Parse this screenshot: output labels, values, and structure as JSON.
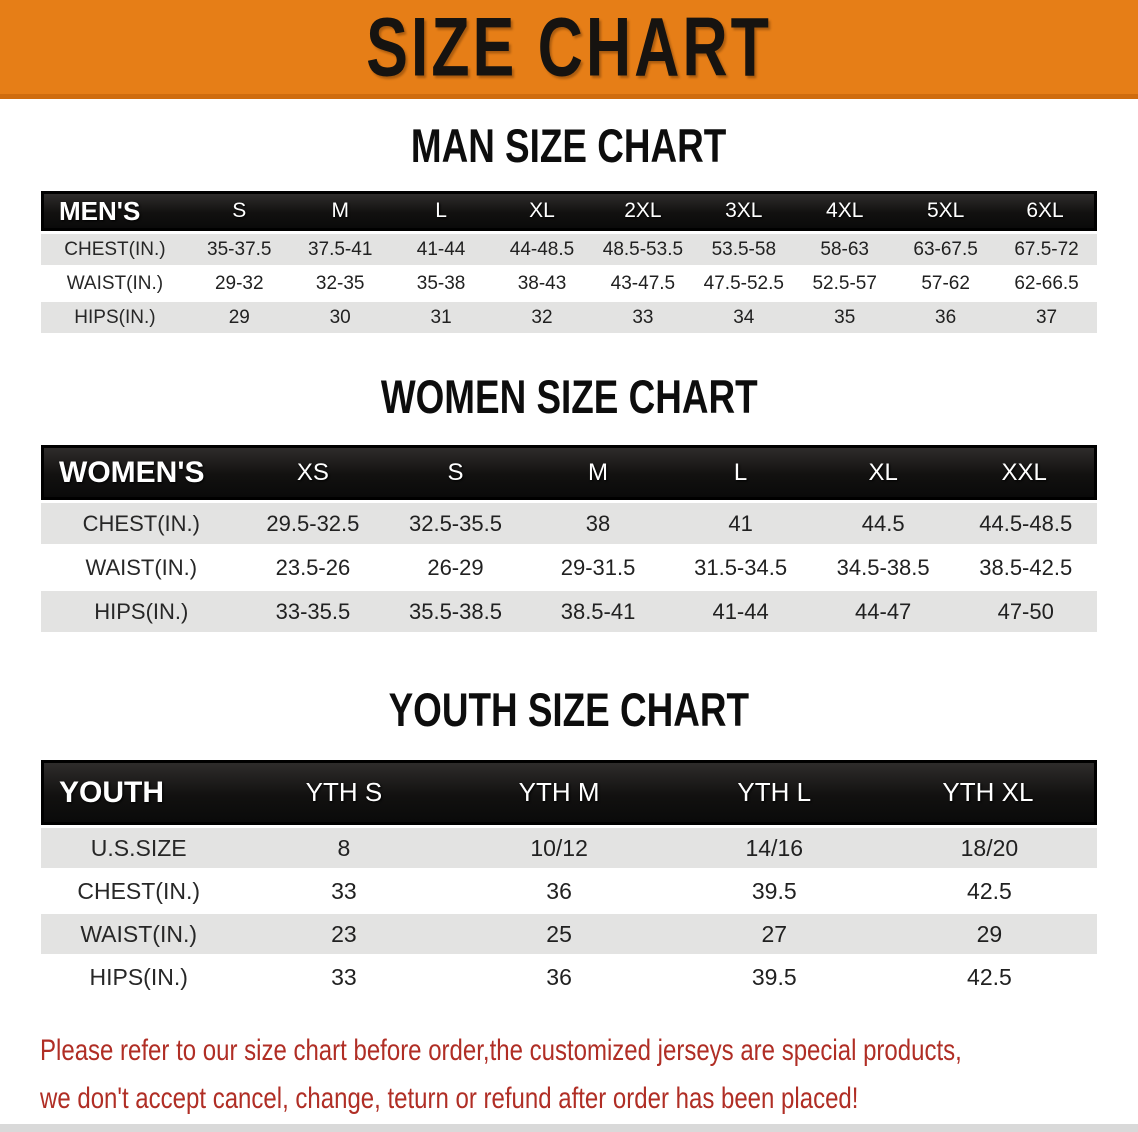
{
  "banner": {
    "title": "SIZE CHART",
    "bg_color": "#e67e17",
    "border_color": "#cf6c0e"
  },
  "charts": {
    "men": {
      "heading": "MAN SIZE CHART",
      "table_label": "MEN'S",
      "sizes": [
        "S",
        "M",
        "L",
        "XL",
        "2XL",
        "3XL",
        "4XL",
        "5XL",
        "6XL"
      ],
      "rows": [
        {
          "label": "CHEST(IN.)",
          "values": [
            "35-37.5",
            "37.5-41",
            "41-44",
            "44-48.5",
            "48.5-53.5",
            "53.5-58",
            "58-63",
            "63-67.5",
            "67.5-72"
          ]
        },
        {
          "label": "WAIST(IN.)",
          "values": [
            "29-32",
            "32-35",
            "35-38",
            "38-43",
            "43-47.5",
            "47.5-52.5",
            "52.5-57",
            "57-62",
            "62-66.5"
          ]
        },
        {
          "label": "HIPS(IN.)",
          "values": [
            "29",
            "30",
            "31",
            "32",
            "33",
            "34",
            "35",
            "36",
            "37"
          ]
        }
      ]
    },
    "women": {
      "heading": "WOMEN SIZE CHART",
      "table_label": "WOMEN'S",
      "sizes": [
        "XS",
        "S",
        "M",
        "L",
        "XL",
        "XXL"
      ],
      "rows": [
        {
          "label": "CHEST(IN.)",
          "values": [
            "29.5-32.5",
            "32.5-35.5",
            "38",
            "41",
            "44.5",
            "44.5-48.5"
          ]
        },
        {
          "label": "WAIST(IN.)",
          "values": [
            "23.5-26",
            "26-29",
            "29-31.5",
            "31.5-34.5",
            "34.5-38.5",
            "38.5-42.5"
          ]
        },
        {
          "label": "HIPS(IN.)",
          "values": [
            "33-35.5",
            "35.5-38.5",
            "38.5-41",
            "41-44",
            "44-47",
            "47-50"
          ]
        }
      ]
    },
    "youth": {
      "heading": "YOUTH SIZE CHART",
      "table_label": "YOUTH",
      "sizes": [
        "YTH S",
        "YTH M",
        "YTH L",
        "YTH XL"
      ],
      "rows": [
        {
          "label": "U.S.SIZE",
          "values": [
            "8",
            "10/12",
            "14/16",
            "18/20"
          ]
        },
        {
          "label": "CHEST(IN.)",
          "values": [
            "33",
            "36",
            "39.5",
            "42.5"
          ]
        },
        {
          "label": "WAIST(IN.)",
          "values": [
            "23",
            "25",
            "27",
            "29"
          ]
        },
        {
          "label": "HIPS(IN.)",
          "values": [
            "33",
            "36",
            "39.5",
            "42.5"
          ]
        }
      ]
    }
  },
  "note": {
    "lines": [
      "Please refer to our size chart before order,the customized jerseys are special products,",
      "we don't accept cancel, change, teturn or refund after order has been placed!"
    ],
    "color": "#b02e25"
  },
  "colors": {
    "table_header_bg": "#151413",
    "row_gray": "#e3e3e2",
    "row_white": "#ffffff",
    "text_dark": "#212121"
  }
}
